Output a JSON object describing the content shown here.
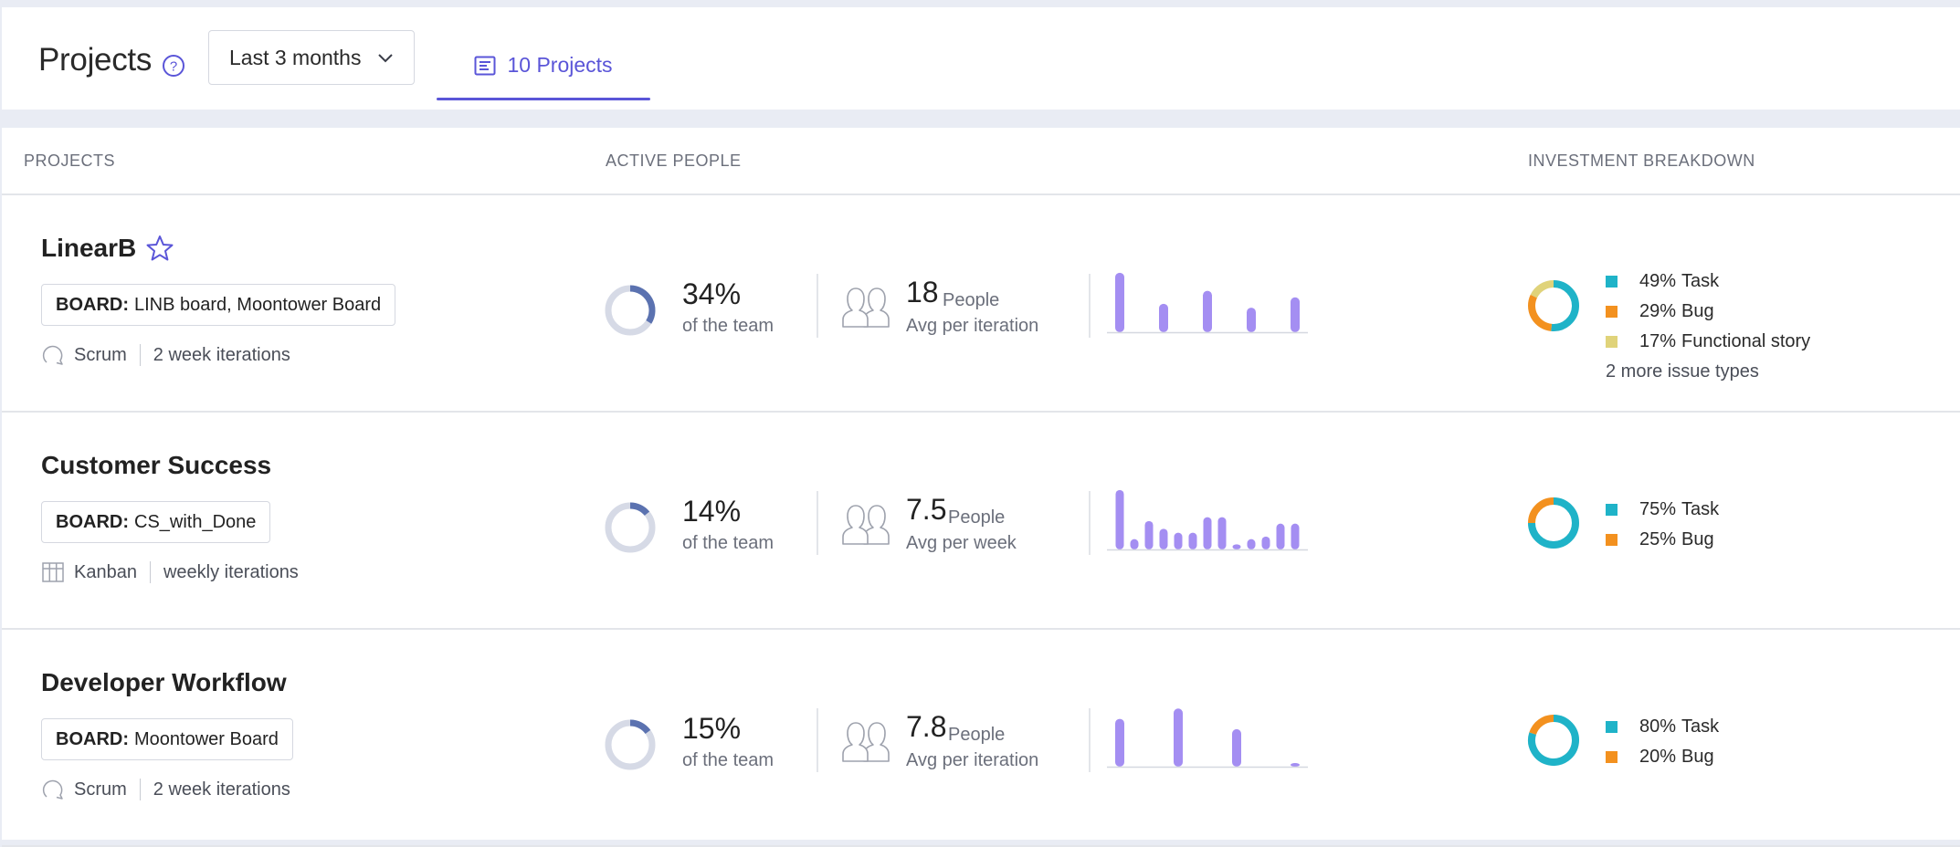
{
  "header": {
    "title": "Projects",
    "range_label": "Last 3 months",
    "projects_tab_label": "10 Projects"
  },
  "columns": {
    "projects": "PROJECTS",
    "active_people": "ACTIVE PEOPLE",
    "investment": "INVESTMENT BREAKDOWN"
  },
  "colors": {
    "accent": "#5a55d8",
    "bar": "#a48ef2",
    "donut_track": "#d6dae6",
    "donut_fill": "#5b72b0",
    "task": "#1fb3c8",
    "bug": "#f3911f",
    "functional_story": "#e0d37a"
  },
  "projects": [
    {
      "name": "LinearB",
      "starred": true,
      "board_prefix": "BOARD:",
      "board": "LINB board, Moontower Board",
      "methodology": "Scrum",
      "iterations": "2 week iterations",
      "team_pct": 34,
      "team_pct_label": "34%",
      "team_sub": "of the team",
      "people": "18",
      "people_unit": "People",
      "people_sub": "Avg per iteration",
      "bars": [
        46,
        22,
        32,
        19,
        27
      ],
      "investment": [
        {
          "pct": 49,
          "label": "49%",
          "name": "Task"
        },
        {
          "pct": 29,
          "label": "29%",
          "name": "Bug"
        },
        {
          "pct": 17,
          "label": "17%",
          "name": "Functional story"
        }
      ],
      "more": "2 more issue types"
    },
    {
      "name": "Customer Success",
      "starred": false,
      "board_prefix": "BOARD:",
      "board": "CS_with_Done",
      "methodology": "Kanban",
      "iterations": "weekly iterations",
      "team_pct": 14,
      "team_pct_label": "14%",
      "team_sub": "of the team",
      "people": "7.5",
      "people_unit": "People",
      "people_sub": "Avg per week",
      "bars": [
        46,
        8,
        22,
        16,
        13,
        13,
        25,
        25,
        4,
        8,
        10,
        20,
        20
      ],
      "investment": [
        {
          "pct": 75,
          "label": "75%",
          "name": "Task"
        },
        {
          "pct": 25,
          "label": "25%",
          "name": "Bug"
        }
      ],
      "more": ""
    },
    {
      "name": "Developer Workflow",
      "starred": false,
      "board_prefix": "BOARD:",
      "board": "Moontower Board",
      "methodology": "Scrum",
      "iterations": "2 week iterations",
      "team_pct": 15,
      "team_pct_label": "15%",
      "team_sub": "of the team",
      "people": "7.8",
      "people_unit": "People",
      "people_sub": "Avg per iteration",
      "bars": [
        37,
        45,
        29,
        2
      ],
      "investment": [
        {
          "pct": 80,
          "label": "80%",
          "name": "Task"
        },
        {
          "pct": 20,
          "label": "20%",
          "name": "Bug"
        }
      ],
      "more": ""
    }
  ]
}
